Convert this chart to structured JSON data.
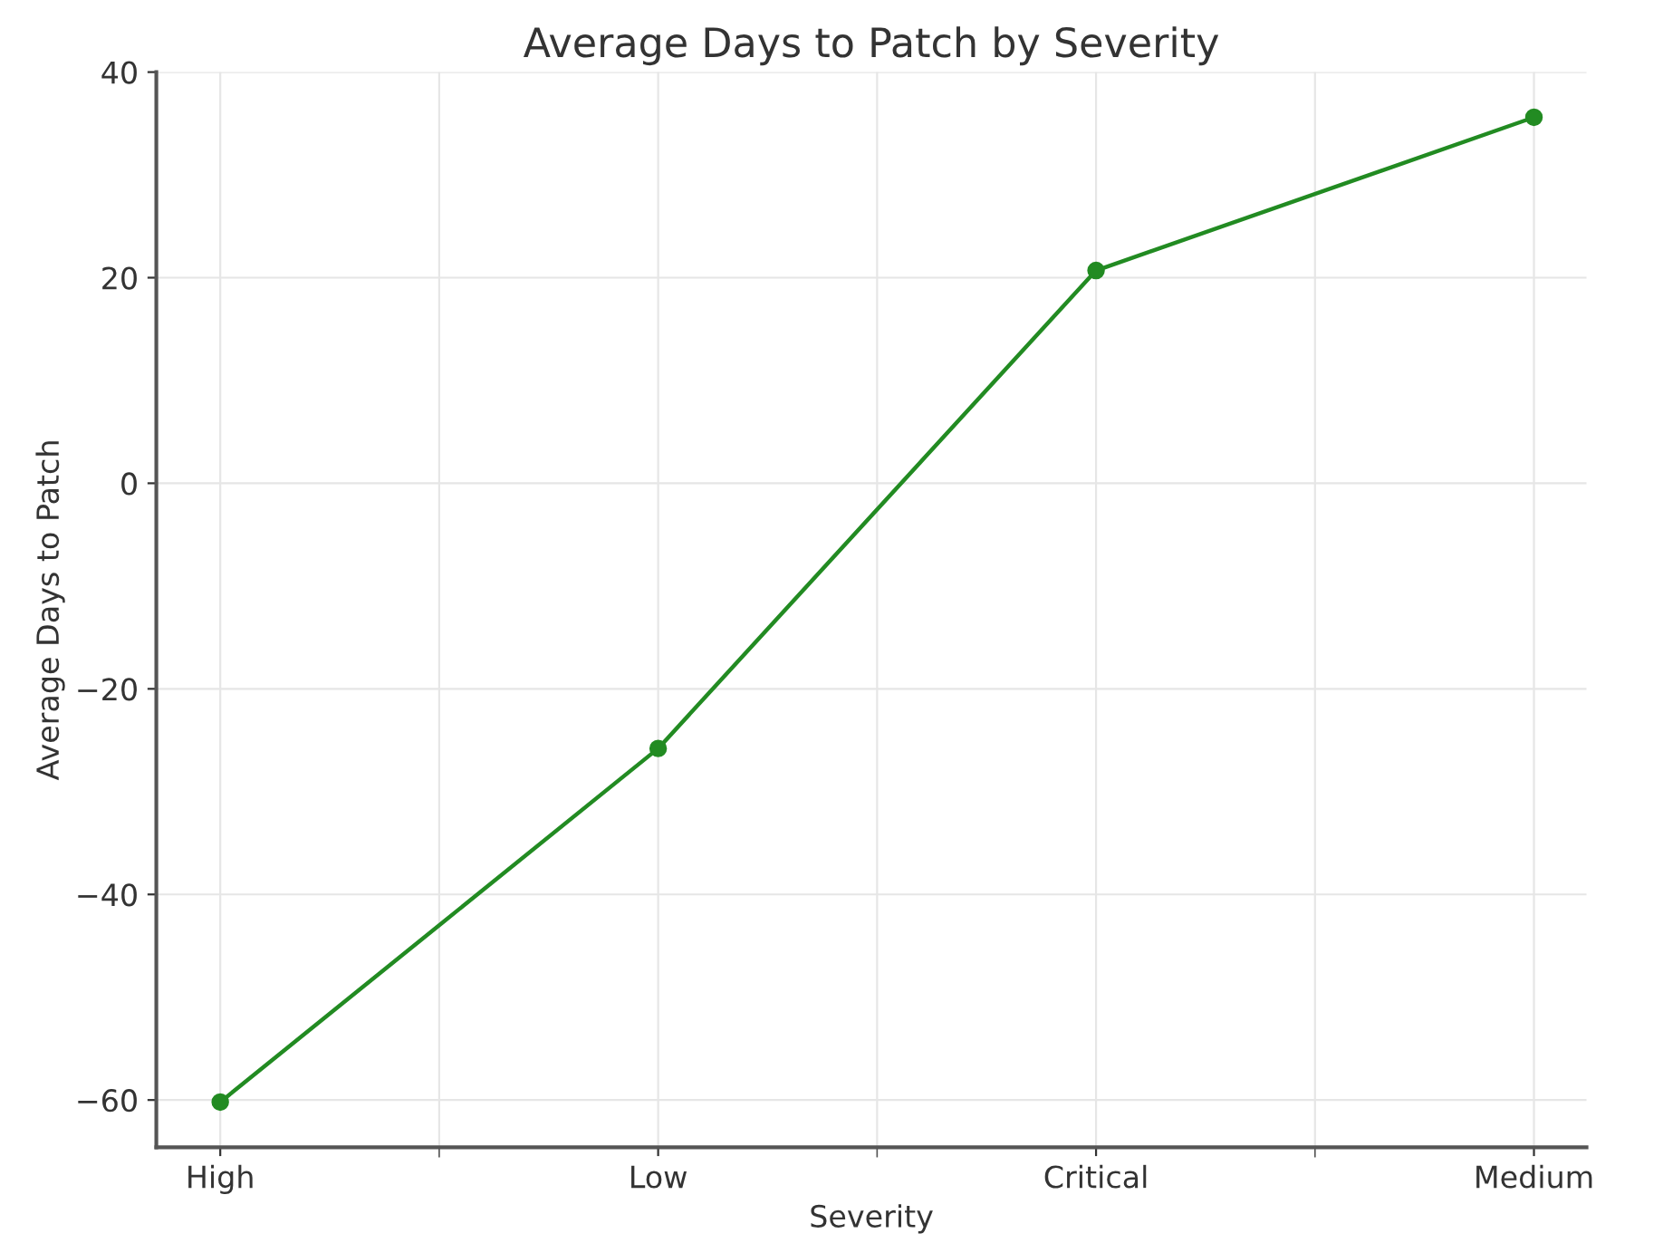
{
  "chart_data": {
    "type": "line",
    "title": "Average Days to Patch by Severity",
    "xlabel": "Severity",
    "ylabel": "Average Days to Patch",
    "categories": [
      "High",
      "Low",
      "Critical",
      "Medium"
    ],
    "series": [
      {
        "color": "#228b22",
        "values": [
          -60.2,
          -25.8,
          20.7,
          35.6
        ]
      }
    ],
    "ylim": [
      -64.6,
      40
    ],
    "yticks": [
      {
        "value": -60,
        "label": "−60"
      },
      {
        "value": -40,
        "label": "−40"
      },
      {
        "value": -20,
        "label": "−20"
      },
      0,
      20,
      40
    ],
    "grid": true,
    "marker": "circle",
    "line_style": "solid"
  }
}
